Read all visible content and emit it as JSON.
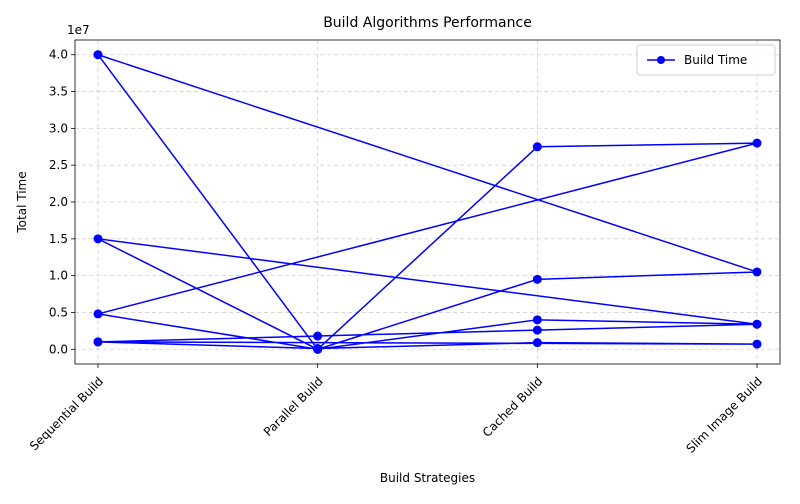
{
  "chart_data": {
    "type": "line",
    "title": "Build Algorithms Performance",
    "xlabel": "Build Strategies",
    "ylabel": "Total Time",
    "y_offset_label": "1e7",
    "categories": [
      "Sequential Build",
      "Parallel Build",
      "Cached Build",
      "Slim Image Build"
    ],
    "yticks": [
      0.0,
      5000000,
      10000000,
      15000000,
      20000000,
      25000000,
      30000000,
      35000000,
      40000000
    ],
    "ytick_labels": [
      "0.0",
      "0.5",
      "1.0",
      "1.5",
      "2.0",
      "2.5",
      "3.0",
      "3.5",
      "4.0"
    ],
    "ylim": [
      -2000000,
      42000000
    ],
    "grid": true,
    "legend_position": "upper right",
    "series": [
      {
        "name": "Build Time",
        "color": "#0000ff",
        "marker": "circle",
        "points": [
          [
            "Sequential Build",
            40000000
          ],
          [
            "Parallel Build",
            0
          ],
          [
            "Cached Build",
            27500000
          ],
          [
            "Slim Image Build",
            28000000
          ],
          [
            "Sequential Build",
            4800000
          ],
          [
            "Parallel Build",
            0
          ],
          [
            "Cached Build",
            4000000
          ],
          [
            "Slim Image Build",
            3400000
          ],
          [
            "Sequential Build",
            1000000
          ],
          [
            "Parallel Build",
            100000
          ],
          [
            "Cached Build",
            900000
          ],
          [
            "Slim Image Build",
            700000
          ],
          [
            "Sequential Build",
            1000000
          ],
          [
            "Parallel Build",
            1800000
          ],
          [
            "Cached Build",
            2600000
          ],
          [
            "Slim Image Build",
            3400000
          ],
          [
            "Sequential Build",
            15000000
          ],
          [
            "Parallel Build",
            0
          ],
          [
            "Cached Build",
            9500000
          ],
          [
            "Slim Image Build",
            10500000
          ],
          [
            "Sequential Build",
            40000000
          ]
        ]
      }
    ]
  }
}
